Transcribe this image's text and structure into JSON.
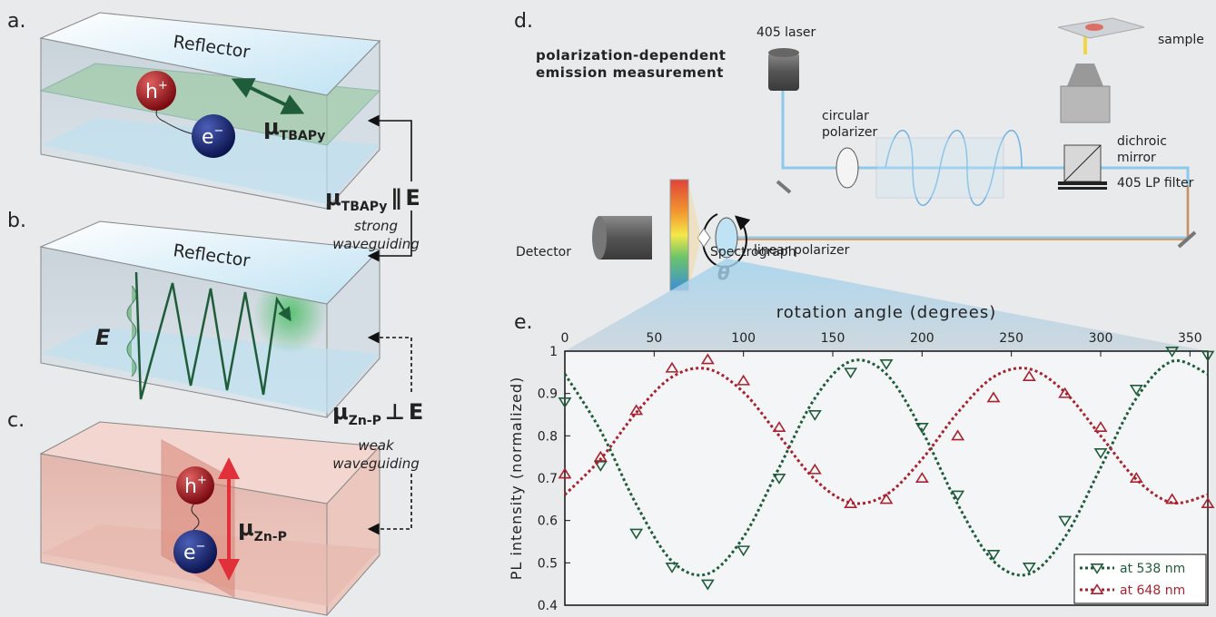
{
  "panels": {
    "a": {
      "label": "a.",
      "reflector": "Reflector",
      "hole": {
        "symbol": "h",
        "charge": "+"
      },
      "electron": {
        "symbol": "e",
        "charge": "−"
      },
      "dipole": {
        "symbol": "μ",
        "subscript": "TBAPy"
      }
    },
    "b": {
      "label": "b.",
      "reflector": "Reflector",
      "field": "E"
    },
    "c": {
      "label": "c.",
      "hole": {
        "symbol": "h",
        "charge": "+"
      },
      "electron": {
        "symbol": "e",
        "charge": "−"
      },
      "dipole": {
        "symbol": "μ",
        "subscript": "Zn-P"
      }
    },
    "relations": [
      {
        "symbol": "μ",
        "subscript": "TBAPy",
        "relation": "∥",
        "field": "E",
        "caption": [
          "strong",
          "waveguiding"
        ]
      },
      {
        "symbol": "μ",
        "subscript": "Zn-P",
        "relation": "⊥",
        "field": "E",
        "caption": [
          "weak",
          "waveguiding"
        ]
      }
    ],
    "d": {
      "label": "d.",
      "title": [
        "polarization-dependent",
        "emission measurement"
      ],
      "laser": "405 laser",
      "sample": "sample",
      "circular_polarizer": [
        "circular",
        "polarizer"
      ],
      "dichroic_mirror": [
        "dichroic",
        "mirror"
      ],
      "filter": "405 LP filter",
      "detector": "Detector",
      "spectrograph": "Spectrograph",
      "linear_polarizer": "linear polarizer",
      "angle": "θ"
    }
  },
  "chart_data": {
    "type": "scatter",
    "panel_label": "e.",
    "xlabel": "rotation angle (degrees)",
    "ylabel": "PL intensity (normalized)",
    "x": [
      0,
      20,
      40,
      60,
      80,
      100,
      120,
      140,
      160,
      180,
      200,
      220,
      240,
      260,
      280,
      300,
      320,
      340,
      360
    ],
    "xlim": [
      0,
      360
    ],
    "xticks": [
      0,
      50,
      100,
      150,
      200,
      250,
      300,
      350
    ],
    "ylim": [
      0.4,
      1
    ],
    "yticks": [
      0.4,
      0.5,
      0.6,
      0.7,
      0.8,
      0.9,
      1
    ],
    "legend": "lower right",
    "series": [
      {
        "name": "at 538 nm",
        "color": "#1f5c3a",
        "marker": "triangle-down",
        "values": [
          0.88,
          0.73,
          0.57,
          0.49,
          0.45,
          0.53,
          0.7,
          0.85,
          0.95,
          0.97,
          0.82,
          0.66,
          0.52,
          0.49,
          0.6,
          0.76,
          0.91,
          1.0,
          0.99
        ],
        "fit": [
          0.946,
          0.812,
          0.638,
          0.504,
          0.474,
          0.561,
          0.725,
          0.889,
          0.976,
          0.946,
          0.812,
          0.638,
          0.504,
          0.474,
          0.561,
          0.725,
          0.889,
          0.976,
          0.946
        ]
      },
      {
        "name": "at 648 nm",
        "color": "#a8232f",
        "marker": "triangle-up",
        "values": [
          0.71,
          0.75,
          0.86,
          0.96,
          0.98,
          0.93,
          0.82,
          0.72,
          0.64,
          0.65,
          0.7,
          0.8,
          0.89,
          0.94,
          0.9,
          0.82,
          0.7,
          0.65,
          0.64
        ],
        "fit": [
          0.661,
          0.745,
          0.855,
          0.939,
          0.958,
          0.903,
          0.8,
          0.697,
          0.642,
          0.661,
          0.745,
          0.855,
          0.939,
          0.958,
          0.903,
          0.8,
          0.697,
          0.642,
          0.661
        ]
      }
    ]
  }
}
